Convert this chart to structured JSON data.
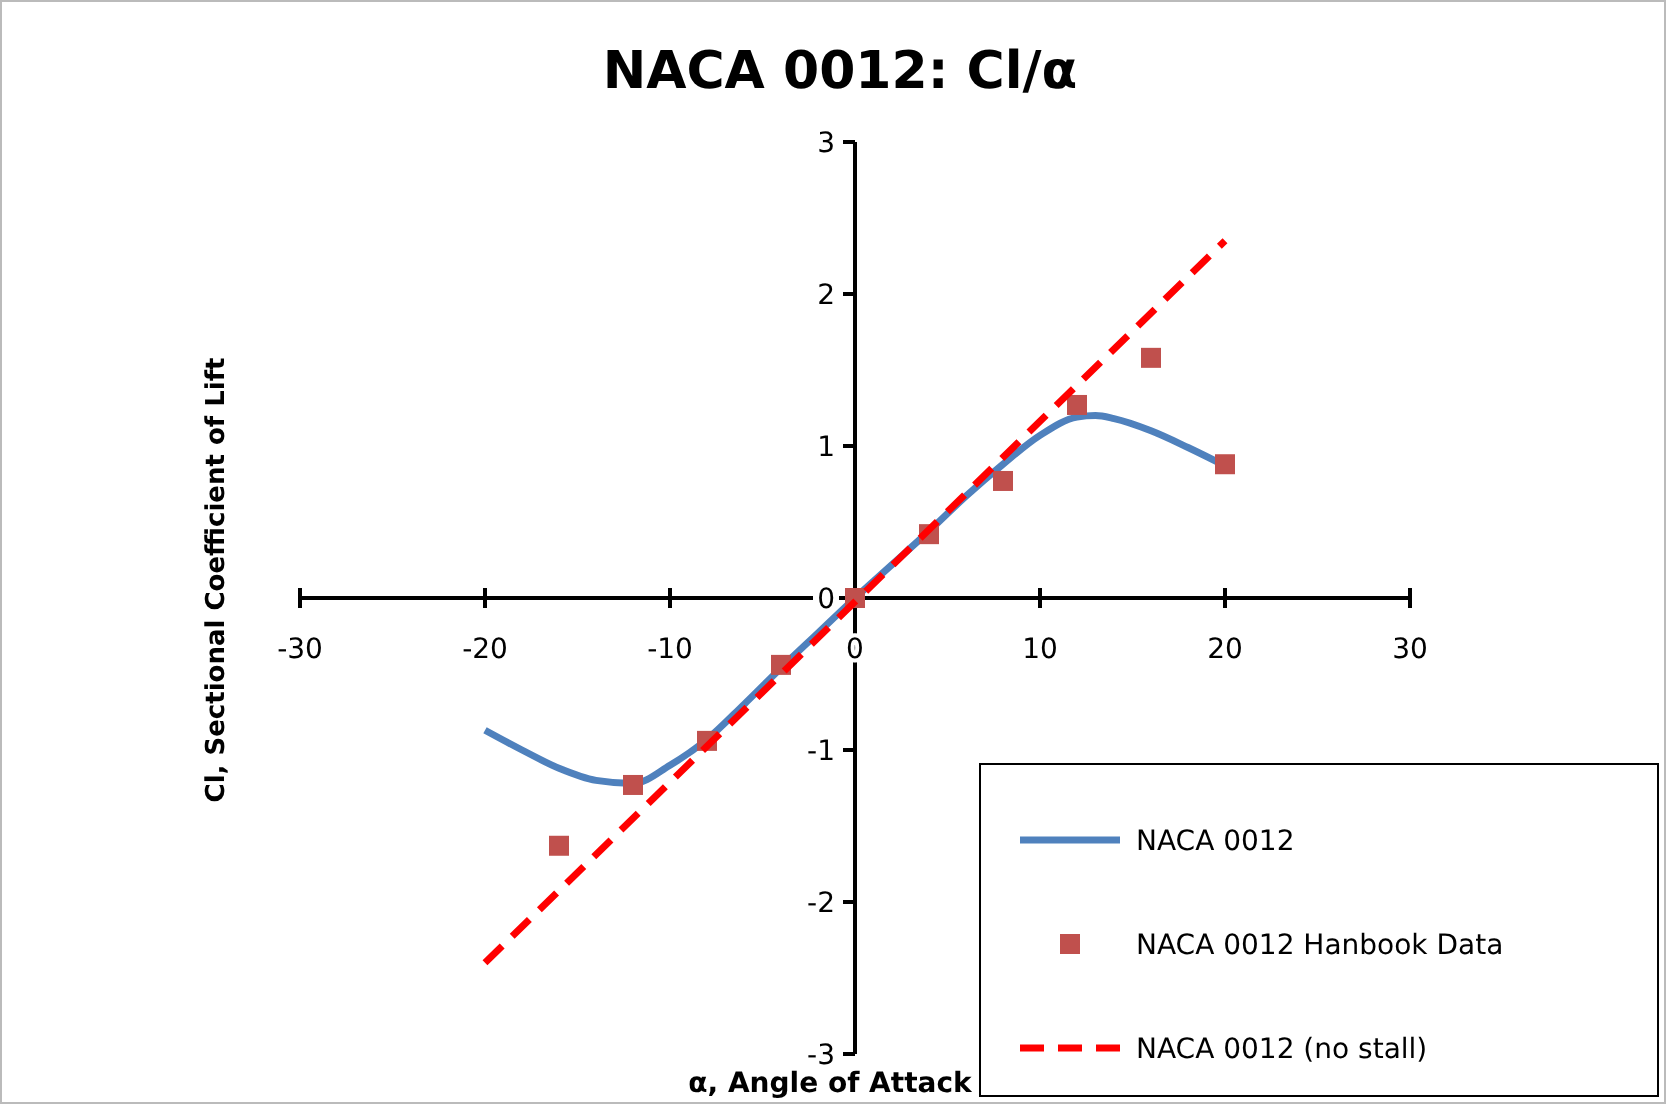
{
  "chart_data": {
    "type": "line",
    "title": "NACA 0012: Cl/α",
    "xlabel": "α, Angle of Attack",
    "ylabel": "Cl, Sectional Coefficient of Lift",
    "xlim": [
      -30,
      30
    ],
    "xticks": [
      -30,
      -20,
      -10,
      0,
      10,
      20,
      30
    ],
    "ylim": [
      -3,
      3
    ],
    "yticks": [
      -3,
      -2,
      -1,
      0,
      1,
      2,
      3
    ],
    "grid": false,
    "legend": "bottom right",
    "series": [
      {
        "name": "NACA 0012",
        "color": "#4f81bd",
        "marker": "none",
        "line_style": "solid",
        "x": [
          -20,
          -18,
          -16,
          -14,
          -12,
          -10,
          -8,
          -6,
          -4,
          -2,
          0,
          2,
          4,
          6,
          8,
          10,
          12,
          13,
          14,
          16,
          18,
          20
        ],
        "values": [
          -0.87,
          -1.0,
          -1.12,
          -1.2,
          -1.22,
          -1.1,
          -0.93,
          -0.7,
          -0.46,
          -0.23,
          0,
          0.22,
          0.44,
          0.67,
          0.88,
          1.07,
          1.19,
          1.2,
          1.18,
          1.1,
          0.99,
          0.87
        ]
      },
      {
        "name": "NACA 0012 Hanbook Data",
        "type": "scatter",
        "color": "#c0504d",
        "marker": "square",
        "x": [
          -16,
          -12,
          -8,
          -4,
          0,
          4,
          8,
          12,
          16,
          20
        ],
        "values": [
          -1.63,
          -1.23,
          -0.94,
          -0.44,
          0,
          0.42,
          0.77,
          1.27,
          1.58,
          0.88
        ]
      },
      {
        "name": "NACA 0012 (no stall)",
        "color": "#ff0000",
        "marker": "none",
        "line_style": "dashed",
        "x": [
          -20,
          20
        ],
        "values": [
          -2.4,
          2.35
        ]
      }
    ]
  }
}
